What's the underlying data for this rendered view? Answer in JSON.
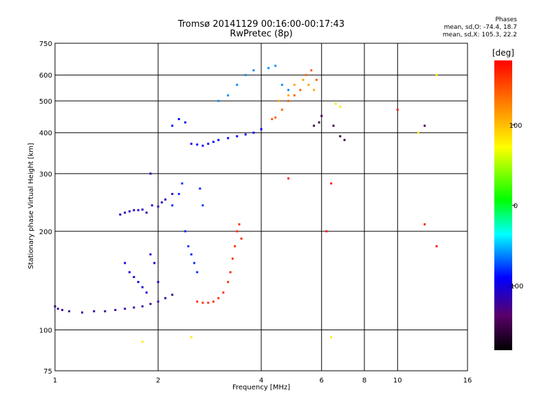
{
  "chart_data": {
    "type": "scatter",
    "title": "Tromsø 20141129 00:16:00-00:17:43",
    "subtitle": "RwPretec (8p)",
    "phase_title": "Phases",
    "phase_o": "mean, sd,O: -74.4, 18.7",
    "phase_x": "mean, sd,X: 105.3, 22.2",
    "xlabel": "Frequency [MHz]",
    "ylabel": "Stationary phase Virtual Height [km]",
    "x_scale": "log",
    "y_scale": "log",
    "xlim": [
      1,
      16
    ],
    "ylim": [
      75,
      750
    ],
    "xticks": [
      "1",
      "2",
      "4",
      "6",
      "8",
      "10",
      "16"
    ],
    "yticks": [
      "75",
      "100",
      "200",
      "300",
      "400",
      "500",
      "600",
      "750"
    ],
    "colorbar": {
      "label": "[deg]",
      "range": [
        -180,
        180
      ],
      "ticks": [
        "100",
        "0",
        "-100"
      ]
    },
    "grid": true,
    "series": [
      {
        "phase": -120,
        "points": [
          [
            1.0,
            118
          ],
          [
            1.02,
            116
          ],
          [
            1.05,
            115
          ],
          [
            1.1,
            114
          ],
          [
            1.2,
            113
          ],
          [
            1.3,
            114
          ],
          [
            1.4,
            114
          ],
          [
            1.5,
            115
          ],
          [
            1.6,
            116
          ],
          [
            1.7,
            117
          ],
          [
            1.8,
            118
          ],
          [
            1.9,
            120
          ],
          [
            2.0,
            122
          ],
          [
            2.1,
            125
          ],
          [
            2.2,
            128
          ]
        ]
      },
      {
        "phase": -110,
        "points": [
          [
            1.55,
            225
          ],
          [
            1.6,
            228
          ],
          [
            1.65,
            230
          ],
          [
            1.7,
            232
          ],
          [
            1.75,
            232
          ],
          [
            1.8,
            233
          ],
          [
            1.85,
            228
          ],
          [
            1.9,
            300
          ],
          [
            1.92,
            240
          ],
          [
            2.0,
            238
          ],
          [
            2.05,
            245
          ],
          [
            2.1,
            250
          ],
          [
            2.2,
            260
          ]
        ]
      },
      {
        "phase": -100,
        "points": [
          [
            1.6,
            160
          ],
          [
            1.65,
            150
          ],
          [
            1.7,
            145
          ],
          [
            1.75,
            140
          ],
          [
            1.8,
            135
          ],
          [
            1.85,
            130
          ],
          [
            1.9,
            170
          ],
          [
            1.95,
            160
          ],
          [
            2.0,
            140
          ]
        ]
      },
      {
        "phase": -80,
        "points": [
          [
            2.2,
            240
          ],
          [
            2.3,
            260
          ],
          [
            2.35,
            280
          ],
          [
            2.4,
            200
          ],
          [
            2.45,
            180
          ],
          [
            2.5,
            170
          ],
          [
            2.55,
            160
          ],
          [
            2.6,
            150
          ],
          [
            2.65,
            270
          ],
          [
            2.7,
            240
          ]
        ]
      },
      {
        "phase": -90,
        "points": [
          [
            2.5,
            370
          ],
          [
            2.6,
            368
          ],
          [
            2.7,
            365
          ],
          [
            2.8,
            370
          ],
          [
            2.9,
            375
          ],
          [
            3.0,
            380
          ],
          [
            3.2,
            385
          ],
          [
            3.4,
            390
          ],
          [
            3.6,
            395
          ],
          [
            3.8,
            400
          ],
          [
            4.0,
            410
          ],
          [
            2.2,
            420
          ],
          [
            2.3,
            440
          ],
          [
            2.4,
            430
          ]
        ]
      },
      {
        "phase": -60,
        "points": [
          [
            3.0,
            500
          ],
          [
            3.2,
            520
          ],
          [
            3.4,
            560
          ],
          [
            3.6,
            600
          ],
          [
            3.8,
            620
          ],
          [
            4.2,
            630
          ],
          [
            4.4,
            640
          ],
          [
            4.6,
            560
          ],
          [
            4.8,
            540
          ]
        ]
      },
      {
        "phase": 160,
        "points": [
          [
            2.6,
            122
          ],
          [
            2.7,
            121
          ],
          [
            2.8,
            121
          ],
          [
            2.9,
            122
          ],
          [
            3.0,
            125
          ],
          [
            3.1,
            130
          ],
          [
            3.2,
            140
          ],
          [
            3.25,
            150
          ],
          [
            3.3,
            165
          ],
          [
            3.35,
            180
          ],
          [
            3.4,
            200
          ],
          [
            3.45,
            210
          ],
          [
            3.5,
            190
          ]
        ]
      },
      {
        "phase": 140,
        "points": [
          [
            4.3,
            440
          ],
          [
            4.4,
            445
          ],
          [
            4.6,
            470
          ],
          [
            4.8,
            500
          ],
          [
            5.0,
            520
          ],
          [
            5.2,
            540
          ],
          [
            5.4,
            600
          ],
          [
            5.6,
            620
          ],
          [
            5.8,
            580
          ]
        ]
      },
      {
        "phase": 110,
        "points": [
          [
            4.5,
            500
          ],
          [
            4.8,
            520
          ],
          [
            5.0,
            560
          ],
          [
            5.3,
            580
          ],
          [
            5.5,
            560
          ],
          [
            5.7,
            540
          ]
        ]
      },
      {
        "phase": -150,
        "points": [
          [
            5.7,
            420
          ],
          [
            5.9,
            430
          ],
          [
            6.0,
            450
          ],
          [
            6.5,
            420
          ],
          [
            6.8,
            390
          ],
          [
            7.0,
            380
          ],
          [
            12.0,
            420
          ]
        ]
      },
      {
        "phase": 80,
        "points": [
          [
            6.6,
            490
          ],
          [
            6.8,
            480
          ],
          [
            1.8,
            92
          ],
          [
            2.5,
            95
          ],
          [
            6.4,
            95
          ],
          [
            13.0,
            600
          ],
          [
            11.5,
            400
          ]
        ]
      },
      {
        "phase": 170,
        "points": [
          [
            6.2,
            200
          ],
          [
            6.4,
            280
          ],
          [
            4.8,
            290
          ],
          [
            10.0,
            470
          ],
          [
            12.0,
            210
          ],
          [
            13.0,
            180
          ]
        ]
      }
    ]
  }
}
